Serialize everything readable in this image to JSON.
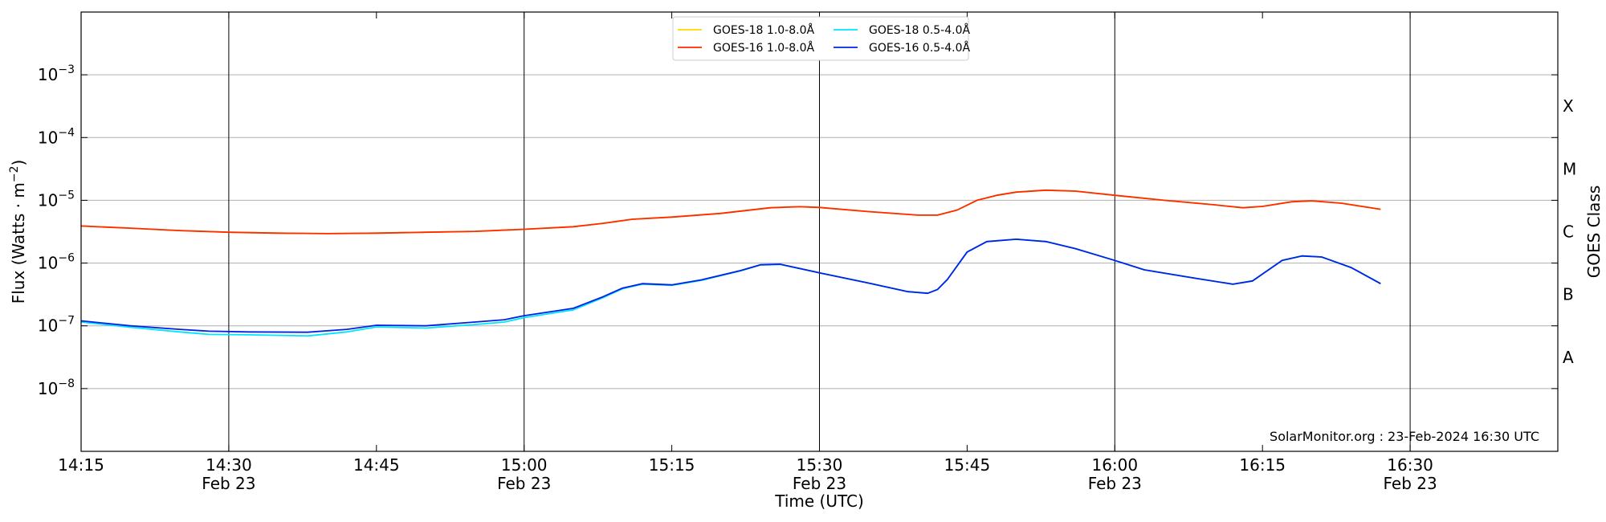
{
  "chart_data": {
    "type": "line",
    "xlabel": "Time (UTC)",
    "ylabel": "Flux (Watts · m",
    "ylabel_sup": "−2",
    "ylabel_close": ")",
    "right_axis_label": "GOES Class",
    "credit": "SolarMonitor.org : 23-Feb-2024 16:30 UTC",
    "y_scale": "log",
    "ylim": [
      1e-09,
      0.01
    ],
    "xlim": [
      "14:15",
      "16:45"
    ],
    "x_ticks": [
      {
        "time": "14:15",
        "label": "14:15",
        "sublabel": ""
      },
      {
        "time": "14:30",
        "label": "14:30",
        "sublabel": "Feb 23"
      },
      {
        "time": "14:45",
        "label": "14:45",
        "sublabel": ""
      },
      {
        "time": "15:00",
        "label": "15:00",
        "sublabel": "Feb 23"
      },
      {
        "time": "15:15",
        "label": "15:15",
        "sublabel": ""
      },
      {
        "time": "15:30",
        "label": "15:30",
        "sublabel": "Feb 23"
      },
      {
        "time": "15:45",
        "label": "15:45",
        "sublabel": ""
      },
      {
        "time": "16:00",
        "label": "16:00",
        "sublabel": "Feb 23"
      },
      {
        "time": "16:15",
        "label": "16:15",
        "sublabel": ""
      },
      {
        "time": "16:30",
        "label": "16:30",
        "sublabel": "Feb 23"
      }
    ],
    "day_lines": [
      "14:30",
      "15:00",
      "15:30",
      "16:00",
      "16:30"
    ],
    "y_ticks": [
      {
        "value": 1e-08,
        "base": "10",
        "exp": "−8"
      },
      {
        "value": 1e-07,
        "base": "10",
        "exp": "−7"
      },
      {
        "value": 1e-06,
        "base": "10",
        "exp": "−6"
      },
      {
        "value": 1e-05,
        "base": "10",
        "exp": "−5"
      },
      {
        "value": 0.0001,
        "base": "10",
        "exp": "−4"
      },
      {
        "value": 0.001,
        "base": "10",
        "exp": "−3"
      }
    ],
    "goes_classes": [
      {
        "label": "A",
        "value": 3.16e-08
      },
      {
        "label": "B",
        "value": 3.16e-07
      },
      {
        "label": "C",
        "value": 3.16e-06
      },
      {
        "label": "M",
        "value": 3.16e-05
      },
      {
        "label": "X",
        "value": 0.000316
      }
    ],
    "grid": true,
    "legend_position": "top-center",
    "series": [
      {
        "name": "GOES-18 1.0-8.0Å",
        "color": "#ffd700",
        "points": [
          [
            "14:15",
            3.9e-06
          ],
          [
            "14:20",
            3.6e-06
          ],
          [
            "14:25",
            3.3e-06
          ],
          [
            "14:30",
            3.1e-06
          ],
          [
            "14:35",
            3e-06
          ],
          [
            "14:40",
            2.95e-06
          ],
          [
            "14:45",
            3e-06
          ],
          [
            "14:50",
            3.1e-06
          ],
          [
            "14:55",
            3.2e-06
          ],
          [
            "15:00",
            3.45e-06
          ],
          [
            "15:05",
            3.8e-06
          ],
          [
            "15:08",
            4.3e-06
          ],
          [
            "15:11",
            5e-06
          ],
          [
            "15:15",
            5.4e-06
          ],
          [
            "15:20",
            6.2e-06
          ],
          [
            "15:25",
            7.6e-06
          ],
          [
            "15:28",
            7.9e-06
          ],
          [
            "15:30",
            7.7e-06
          ],
          [
            "15:35",
            6.6e-06
          ],
          [
            "15:40",
            5.8e-06
          ],
          [
            "15:42",
            5.8e-06
          ],
          [
            "15:44",
            7e-06
          ],
          [
            "15:46",
            1e-05
          ],
          [
            "15:48",
            1.2e-05
          ],
          [
            "15:50",
            1.35e-05
          ],
          [
            "15:53",
            1.45e-05
          ],
          [
            "15:56",
            1.4e-05
          ],
          [
            "16:00",
            1.2e-05
          ],
          [
            "16:05",
            1e-05
          ],
          [
            "16:10",
            8.5e-06
          ],
          [
            "16:13",
            7.6e-06
          ],
          [
            "16:15",
            8e-06
          ],
          [
            "16:18",
            9.5e-06
          ],
          [
            "16:20",
            9.8e-06
          ],
          [
            "16:23",
            9e-06
          ],
          [
            "16:27",
            7.2e-06
          ]
        ]
      },
      {
        "name": "GOES-16 1.0-8.0Å",
        "color": "#ff2a00",
        "points": [
          [
            "14:15",
            3.9e-06
          ],
          [
            "14:20",
            3.6e-06
          ],
          [
            "14:25",
            3.3e-06
          ],
          [
            "14:30",
            3.1e-06
          ],
          [
            "14:35",
            3e-06
          ],
          [
            "14:40",
            2.95e-06
          ],
          [
            "14:45",
            3e-06
          ],
          [
            "14:50",
            3.1e-06
          ],
          [
            "14:55",
            3.2e-06
          ],
          [
            "15:00",
            3.45e-06
          ],
          [
            "15:05",
            3.8e-06
          ],
          [
            "15:08",
            4.3e-06
          ],
          [
            "15:11",
            5e-06
          ],
          [
            "15:15",
            5.4e-06
          ],
          [
            "15:20",
            6.2e-06
          ],
          [
            "15:25",
            7.6e-06
          ],
          [
            "15:28",
            7.9e-06
          ],
          [
            "15:30",
            7.7e-06
          ],
          [
            "15:35",
            6.6e-06
          ],
          [
            "15:40",
            5.8e-06
          ],
          [
            "15:42",
            5.8e-06
          ],
          [
            "15:44",
            7e-06
          ],
          [
            "15:46",
            1e-05
          ],
          [
            "15:48",
            1.2e-05
          ],
          [
            "15:50",
            1.35e-05
          ],
          [
            "15:53",
            1.45e-05
          ],
          [
            "15:56",
            1.4e-05
          ],
          [
            "16:00",
            1.2e-05
          ],
          [
            "16:05",
            1e-05
          ],
          [
            "16:10",
            8.5e-06
          ],
          [
            "16:13",
            7.6e-06
          ],
          [
            "16:15",
            8e-06
          ],
          [
            "16:18",
            9.5e-06
          ],
          [
            "16:20",
            9.8e-06
          ],
          [
            "16:23",
            9e-06
          ],
          [
            "16:27",
            7.2e-06
          ]
        ]
      },
      {
        "name": "GOES-18 0.5-4.0Å",
        "color": "#00e5ff",
        "points": [
          [
            "14:15",
            1.15e-07
          ],
          [
            "14:20",
            9.5e-08
          ],
          [
            "14:25",
            8e-08
          ],
          [
            "14:28",
            7.3e-08
          ],
          [
            "14:32",
            7.2e-08
          ],
          [
            "14:38",
            6.9e-08
          ],
          [
            "14:42",
            8e-08
          ],
          [
            "14:45",
            9.6e-08
          ],
          [
            "14:50",
            9.2e-08
          ],
          [
            "14:55",
            1.05e-07
          ],
          [
            "14:58",
            1.15e-07
          ],
          [
            "15:00",
            1.35e-07
          ],
          [
            "15:05",
            1.8e-07
          ],
          [
            "15:08",
            2.8e-07
          ],
          [
            "15:10",
            3.9e-07
          ],
          [
            "15:12",
            4.6e-07
          ],
          [
            "15:15",
            4.4e-07
          ],
          [
            "15:18",
            5.3e-07
          ],
          [
            "15:22",
            7.5e-07
          ],
          [
            "15:24",
            9.3e-07
          ],
          [
            "15:26",
            9.5e-07
          ],
          [
            "15:30",
            7e-07
          ],
          [
            "15:35",
            4.8e-07
          ],
          [
            "15:39",
            3.5e-07
          ],
          [
            "15:41",
            3.3e-07
          ],
          [
            "15:42",
            3.8e-07
          ],
          [
            "15:43",
            5.5e-07
          ],
          [
            "15:45",
            1.5e-06
          ],
          [
            "15:47",
            2.2e-06
          ],
          [
            "15:50",
            2.4e-06
          ],
          [
            "15:53",
            2.2e-06
          ],
          [
            "15:56",
            1.7e-06
          ],
          [
            "16:00",
            1.1e-06
          ],
          [
            "16:03",
            7.8e-07
          ],
          [
            "16:08",
            5.8e-07
          ],
          [
            "16:12",
            4.6e-07
          ],
          [
            "16:14",
            5.2e-07
          ],
          [
            "16:17",
            1.1e-06
          ],
          [
            "16:19",
            1.3e-06
          ],
          [
            "16:21",
            1.25e-06
          ],
          [
            "16:24",
            8.5e-07
          ],
          [
            "16:27",
            4.7e-07
          ]
        ]
      },
      {
        "name": "GOES-16 0.5-4.0Å",
        "color": "#0022e6",
        "points": [
          [
            "14:15",
            1.2e-07
          ],
          [
            "14:20",
            1e-07
          ],
          [
            "14:25",
            8.8e-08
          ],
          [
            "14:28",
            8.2e-08
          ],
          [
            "14:32",
            8e-08
          ],
          [
            "14:38",
            7.9e-08
          ],
          [
            "14:42",
            8.8e-08
          ],
          [
            "14:45",
            1.02e-07
          ],
          [
            "14:50",
            1e-07
          ],
          [
            "14:55",
            1.15e-07
          ],
          [
            "14:58",
            1.25e-07
          ],
          [
            "15:00",
            1.45e-07
          ],
          [
            "15:05",
            1.9e-07
          ],
          [
            "15:08",
            2.9e-07
          ],
          [
            "15:10",
            4e-07
          ],
          [
            "15:12",
            4.7e-07
          ],
          [
            "15:15",
            4.5e-07
          ],
          [
            "15:18",
            5.4e-07
          ],
          [
            "15:22",
            7.6e-07
          ],
          [
            "15:24",
            9.4e-07
          ],
          [
            "15:26",
            9.6e-07
          ],
          [
            "15:30",
            7e-07
          ],
          [
            "15:35",
            4.8e-07
          ],
          [
            "15:39",
            3.5e-07
          ],
          [
            "15:41",
            3.3e-07
          ],
          [
            "15:42",
            3.8e-07
          ],
          [
            "15:43",
            5.5e-07
          ],
          [
            "15:45",
            1.5e-06
          ],
          [
            "15:47",
            2.2e-06
          ],
          [
            "15:50",
            2.4e-06
          ],
          [
            "15:53",
            2.2e-06
          ],
          [
            "15:56",
            1.7e-06
          ],
          [
            "16:00",
            1.1e-06
          ],
          [
            "16:03",
            7.8e-07
          ],
          [
            "16:08",
            5.8e-07
          ],
          [
            "16:12",
            4.6e-07
          ],
          [
            "16:14",
            5.2e-07
          ],
          [
            "16:17",
            1.1e-06
          ],
          [
            "16:19",
            1.3e-06
          ],
          [
            "16:21",
            1.25e-06
          ],
          [
            "16:24",
            8.5e-07
          ],
          [
            "16:27",
            4.7e-07
          ]
        ]
      }
    ]
  }
}
